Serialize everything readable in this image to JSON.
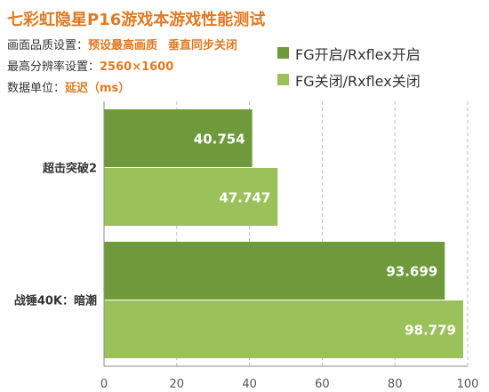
{
  "header": {
    "title": "七彩虹隐星P16游戏本游戏性能测试",
    "quality_label": "画面品质设置：",
    "quality_value": "预设最高画质",
    "vsync_value": "垂直同步关闭",
    "resolution_label": "最高分辨率设置：",
    "resolution_value": "2560×1600",
    "unit_label": "数据单位：",
    "unit_value": "延迟（ms）"
  },
  "colors": {
    "series_on": "#6e9a3c",
    "series_off": "#9bc25a",
    "title": "#e07a22",
    "grid": "#bfbfbf",
    "axis": "#8c8c8c"
  },
  "chart_data": {
    "type": "bar",
    "orientation": "horizontal",
    "categories": [
      "超击突破2",
      "战锤40K：暗潮"
    ],
    "series": [
      {
        "name": "FG开启/Rxflex开启",
        "values": [
          40.754,
          93.699
        ]
      },
      {
        "name": "FG关闭/Rxflex关闭",
        "values": [
          47.747,
          98.779
        ]
      }
    ],
    "xlim": [
      0,
      100
    ],
    "xticks": [
      0,
      20,
      40,
      60,
      80,
      100
    ],
    "grid": true,
    "legend_position": "top-right"
  }
}
